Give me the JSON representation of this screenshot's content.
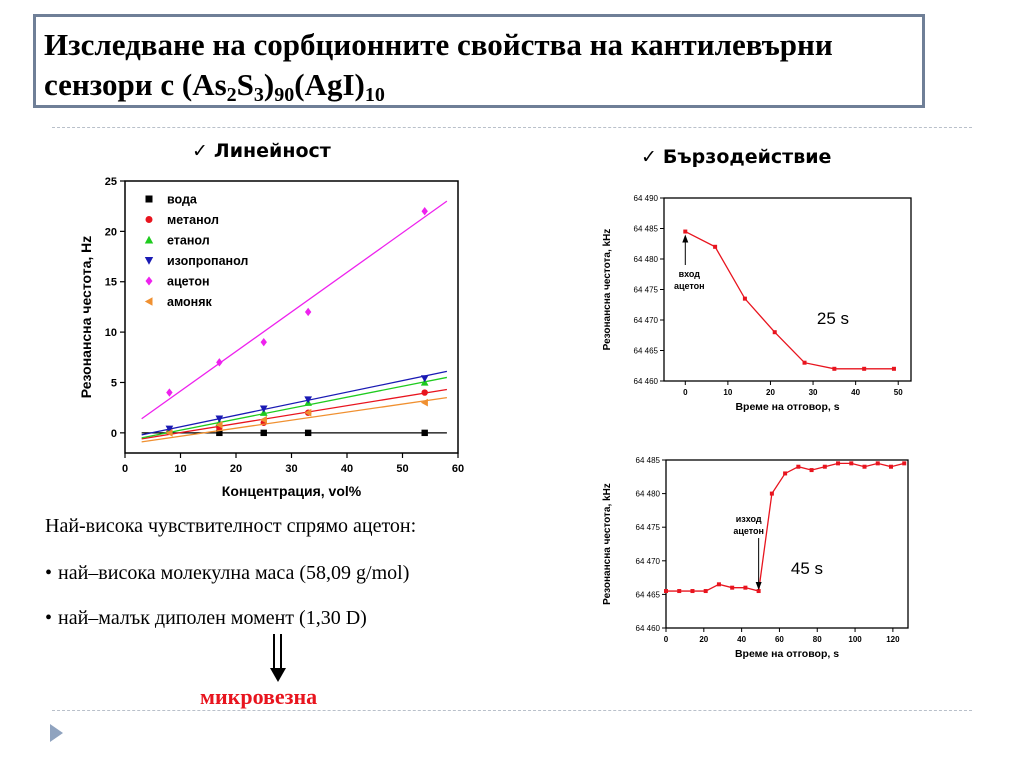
{
  "slide": {
    "title_line1": "Изследване на сорбционните свойства на кантилевърни",
    "title_line2_prefix": "сензори с (As",
    "title_sub1": "2",
    "title_mid1": "S",
    "title_sub2": "3",
    "title_mid2": ")",
    "title_sub3": "90",
    "title_mid3": "(AgI)",
    "title_sub4": "10",
    "left_heading": "Линейност",
    "right_heading": "Бързодействие",
    "check_mark": "✓",
    "sensitivity_text": "Най-висока чувствителност спрямо ацетон:",
    "bullet_char": "•",
    "bullets": [
      "най–висока молекулна маса (58,09 g/mol)",
      "най–малък диполен момент (1,30 D)"
    ],
    "conclusion": "микровезна",
    "accent_color": "#e8141e",
    "border_color": "#6f7f97",
    "nav_icon": "play-triangle-icon"
  },
  "chart_data": [
    {
      "type": "scatter",
      "xlabel": "Концентрация, vol%",
      "ylabel": "Резонансна честота, Hz",
      "xlim": [
        0,
        60
      ],
      "ylim": [
        -2,
        25
      ],
      "xticks": [
        0,
        10,
        20,
        30,
        40,
        50,
        60
      ],
      "yticks": [
        0,
        5,
        10,
        15,
        20,
        25
      ],
      "legend_position": "top-left",
      "grid": false,
      "series": [
        {
          "name": "вода",
          "color": "#000000",
          "marker": "square",
          "x": [
            17,
            25,
            33,
            54
          ],
          "y": [
            0,
            0,
            0,
            0
          ],
          "fit": [
            [
              3,
              0
            ],
            [
              58,
              0
            ]
          ]
        },
        {
          "name": "метанол",
          "color": "#e8141e",
          "marker": "circle",
          "x": [
            8,
            17,
            25,
            33,
            54
          ],
          "y": [
            0.1,
            0.5,
            1.0,
            2.0,
            4.0
          ],
          "fit": [
            [
              3,
              -0.6
            ],
            [
              58,
              4.3
            ]
          ]
        },
        {
          "name": "етанол",
          "color": "#1ecb1e",
          "marker": "triangle-up",
          "x": [
            8,
            17,
            25,
            33,
            54
          ],
          "y": [
            0.2,
            1.0,
            2.0,
            3.0,
            5.0
          ],
          "fit": [
            [
              3,
              -0.5
            ],
            [
              58,
              5.5
            ]
          ]
        },
        {
          "name": "изопропанол",
          "color": "#1a1ab4",
          "marker": "triangle-down",
          "x": [
            8,
            17,
            25,
            33,
            54
          ],
          "y": [
            0.4,
            1.4,
            2.4,
            3.3,
            5.4
          ],
          "fit": [
            [
              3,
              -0.2
            ],
            [
              58,
              6.1
            ]
          ]
        },
        {
          "name": "ацетон",
          "color": "#ee22ee",
          "marker": "diamond",
          "x": [
            8,
            17,
            25,
            33,
            54
          ],
          "y": [
            4,
            7,
            9,
            12,
            22
          ],
          "fit": [
            [
              3,
              1.4
            ],
            [
              58,
              23
            ]
          ]
        },
        {
          "name": "амоняк",
          "color": "#f09030",
          "marker": "triangle-left",
          "x": [
            8,
            17,
            25,
            33,
            54
          ],
          "y": [
            0,
            0.8,
            1.3,
            2.0,
            3.0
          ],
          "fit": [
            [
              3,
              -0.9
            ],
            [
              58,
              3.5
            ]
          ]
        }
      ]
    },
    {
      "type": "line",
      "xlabel": "Време на отговор, s",
      "ylabel": "Резонансна честота, kHz",
      "xlim": [
        -5,
        53
      ],
      "ylim": [
        64460,
        64490
      ],
      "xticks": [
        0,
        10,
        20,
        30,
        40,
        50
      ],
      "yticks": [
        64460,
        64465,
        64470,
        64475,
        64480,
        64485,
        64490
      ],
      "ytick_labels": [
        "64 460",
        "64 465",
        "64 470",
        "64 475",
        "64 480",
        "64 485",
        "64 490"
      ],
      "color": "#e8141e",
      "x": [
        0,
        7,
        14,
        21,
        28,
        35,
        42,
        49
      ],
      "y": [
        64484.5,
        64482,
        64473.5,
        64468,
        64463,
        64462,
        64462,
        64462
      ],
      "annotation": {
        "lines": [
          "вход",
          "ацетон"
        ],
        "arrow_to_x": 0
      },
      "time_label": "25 s"
    },
    {
      "type": "line",
      "xlabel": "Време на отговор, s",
      "ylabel": "Резонансна честота, kHz",
      "xlim": [
        0,
        128
      ],
      "ylim": [
        64460,
        64485
      ],
      "xticks": [
        0,
        20,
        40,
        60,
        80,
        100,
        120
      ],
      "yticks": [
        64460,
        64465,
        64470,
        64475,
        64480,
        64485
      ],
      "ytick_labels": [
        "64 460",
        "64 465",
        "64 470",
        "64 475",
        "64 480",
        "64 485"
      ],
      "color": "#e8141e",
      "x": [
        0,
        7,
        14,
        21,
        28,
        35,
        42,
        49,
        56,
        63,
        70,
        77,
        84,
        91,
        98,
        105,
        112,
        119,
        126
      ],
      "y": [
        64465.5,
        64465.5,
        64465.5,
        64465.5,
        64466.5,
        64466,
        64466,
        64465.5,
        64480,
        64483,
        64484,
        64483.5,
        64484,
        64484.5,
        64484.5,
        64484,
        64484.5,
        64484,
        64484.5
      ],
      "annotation": {
        "lines": [
          "изход",
          "ацетон"
        ],
        "arrow_to_x": 49
      },
      "time_label": "45 s"
    }
  ]
}
